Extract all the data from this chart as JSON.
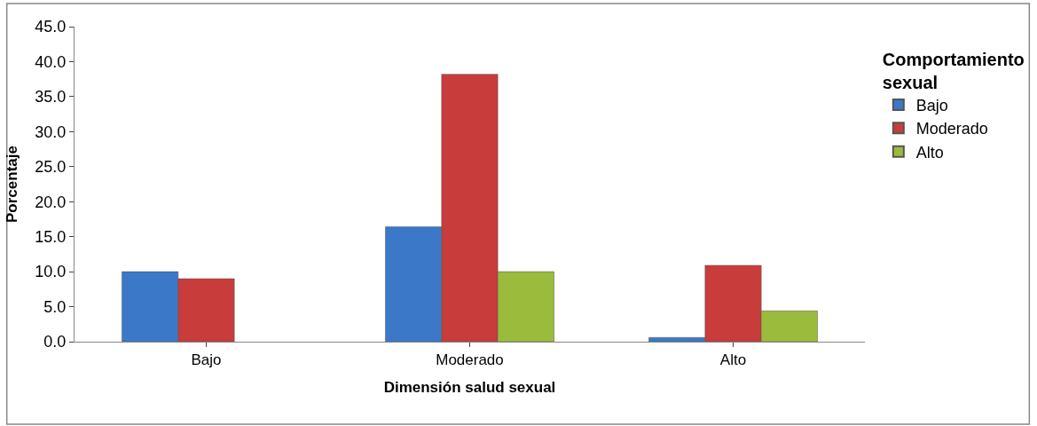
{
  "chart_data": {
    "type": "bar",
    "xlabel": "Dimensión salud sexual",
    "ylabel": "Porcentaje",
    "legend_title": "Comportamiento sexual",
    "categories": [
      "Bajo",
      "Moderado",
      "Alto"
    ],
    "series": [
      {
        "name": "Bajo",
        "color": "#3c78c8",
        "values": [
          10.0,
          16.4,
          0.6
        ]
      },
      {
        "name": "Moderado",
        "color": "#c83c3c",
        "values": [
          9.0,
          38.2,
          10.9
        ]
      },
      {
        "name": "Alto",
        "color": "#9bbb3c",
        "values": [
          null,
          10.0,
          4.4
        ]
      }
    ],
    "ylim": [
      0,
      45
    ],
    "yticks": [
      {
        "value": 0,
        "label": "0.0"
      },
      {
        "value": 5,
        "label": "5.0"
      },
      {
        "value": 10,
        "label": "10.0"
      },
      {
        "value": 15,
        "label": "15.0"
      },
      {
        "value": 20,
        "label": "20.0"
      },
      {
        "value": 25,
        "label": "25.0"
      },
      {
        "value": 30,
        "label": "30.0"
      },
      {
        "value": 35,
        "label": "35.0"
      },
      {
        "value": 40,
        "label": "40.0"
      },
      {
        "value": 45,
        "label": "45.0"
      }
    ],
    "legend": "right"
  }
}
